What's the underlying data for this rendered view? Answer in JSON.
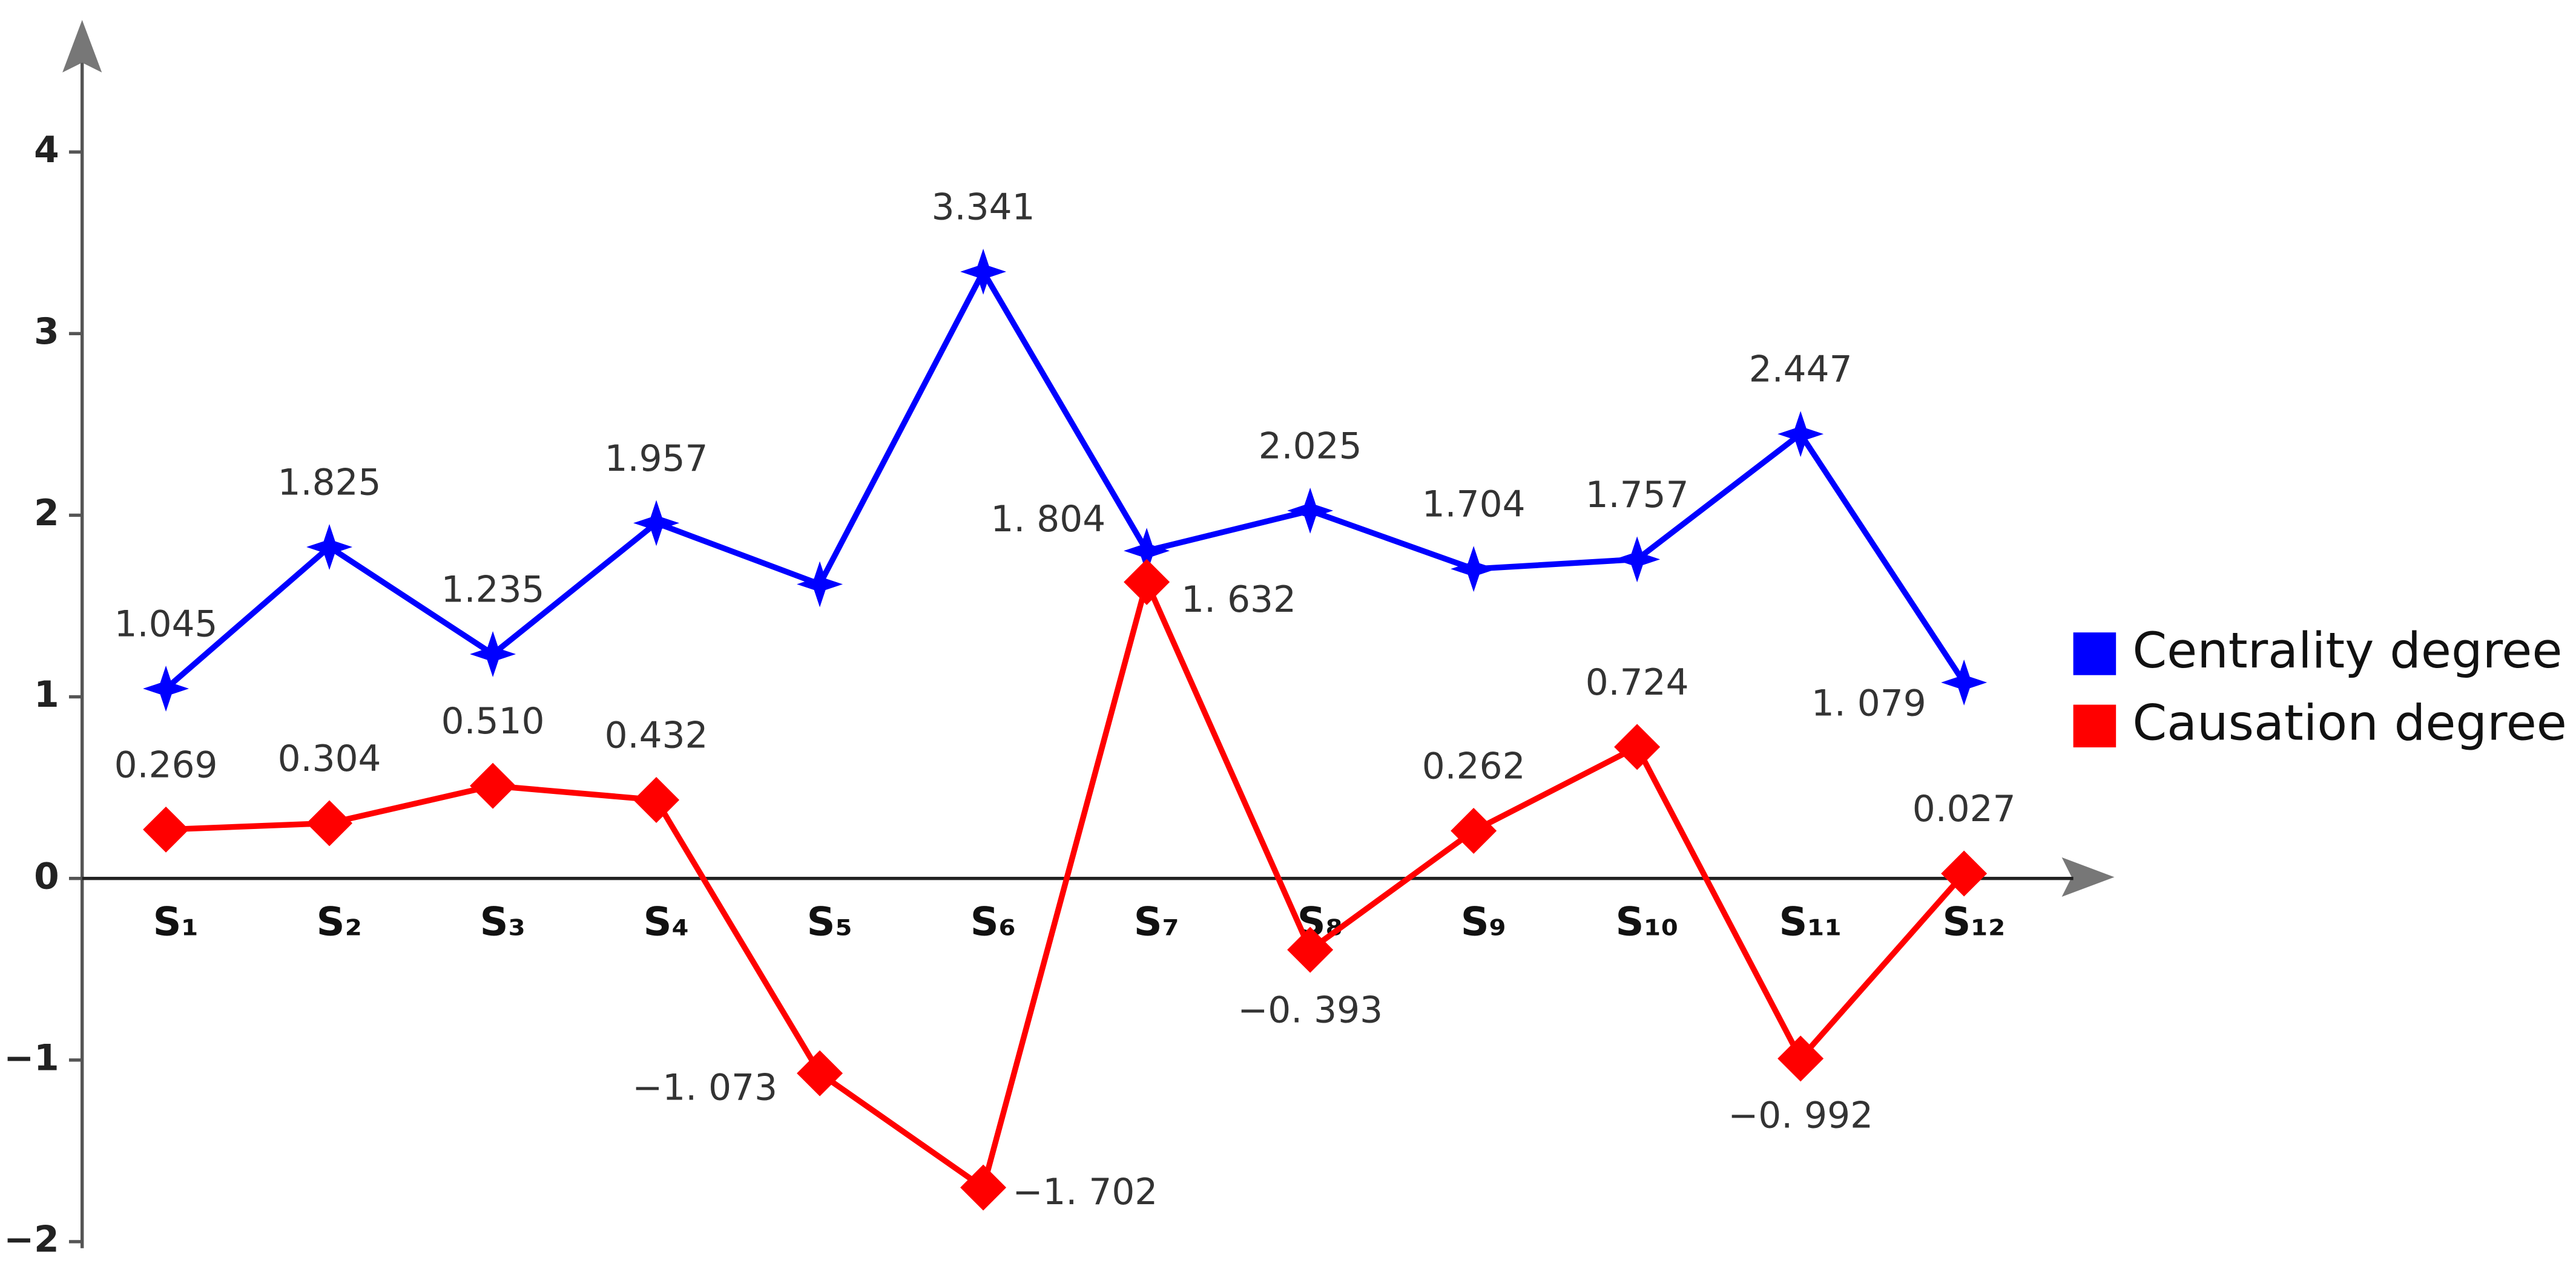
{
  "chart_data": {
    "type": "line",
    "categories": [
      "S₁",
      "S₂",
      "S₃",
      "S₄",
      "S₅",
      "S₆",
      "S₇",
      "S₈",
      "S₉",
      "S₁₀",
      "S₁₁",
      "S₁₂"
    ],
    "series": [
      {
        "name": "Centrality degree",
        "color": "#0000ff",
        "marker": "star",
        "values": [
          1.045,
          1.825,
          1.235,
          1.957,
          1.62,
          3.341,
          1.804,
          2.025,
          1.704,
          1.757,
          2.447,
          1.079
        ],
        "value_labels": [
          "1.045",
          "1.825",
          "1.235",
          "1.957",
          null,
          "3.341",
          "1. 804",
          "2.025",
          "1.704",
          "1.757",
          "2.447",
          "1. 079"
        ]
      },
      {
        "name": "Causation degree",
        "color": "#ff0000",
        "marker": "diamond",
        "values": [
          0.269,
          0.304,
          0.51,
          0.432,
          -1.073,
          -1.702,
          1.632,
          -0.393,
          0.262,
          0.724,
          -0.992,
          0.027
        ],
        "value_labels": [
          "0.269",
          "0.304",
          "0.510",
          "0.432",
          "−1. 073",
          "−1. 702",
          "1. 632",
          "−0. 393",
          "0.262",
          "0.724",
          "−0. 992",
          "0.027"
        ]
      }
    ],
    "ylim": [
      -2,
      4.7
    ],
    "yticks": [
      {
        "value": -2,
        "label": "−2"
      },
      {
        "value": -1,
        "label": "−1"
      },
      0,
      1,
      2,
      3,
      4
    ],
    "legend": "right"
  }
}
